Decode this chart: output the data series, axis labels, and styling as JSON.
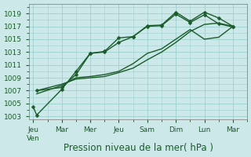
{
  "background_color": "#cde8e8",
  "grid_color": "#9ecfcf",
  "line_color": "#1a5c2a",
  "xlabel": "Pression niveau de la mer( hPa )",
  "ylim": [
    1002.5,
    1020.5
  ],
  "yticks": [
    1003,
    1005,
    1007,
    1009,
    1011,
    1013,
    1015,
    1017,
    1019
  ],
  "xtick_labels": [
    "Jeu\nVen",
    "Mar",
    "Mer",
    "Jeu",
    "Sam",
    "Dim",
    "Lun",
    "Mar"
  ],
  "xtick_positions": [
    0,
    1,
    2,
    3,
    4,
    5,
    6,
    7
  ],
  "xlim": [
    -0.15,
    7.5
  ],
  "line1_x": [
    0,
    0.12,
    1,
    1.5,
    2,
    2.5,
    3,
    3.5,
    4,
    4.5,
    5,
    5.5,
    6,
    6.5,
    7
  ],
  "line1_y": [
    1004.5,
    1003.2,
    1007.2,
    1010.0,
    1012.8,
    1013.0,
    1014.5,
    1015.4,
    1017.1,
    1017.2,
    1019.2,
    1017.8,
    1019.2,
    1018.3,
    1017.0
  ],
  "line2_x": [
    0.12,
    1,
    1.5,
    2,
    2.5,
    3,
    3.5,
    4,
    4.5,
    5,
    5.5,
    6,
    6.5,
    7
  ],
  "line2_y": [
    1007.0,
    1007.5,
    1009.5,
    1012.8,
    1013.1,
    1015.2,
    1015.4,
    1017.0,
    1017.1,
    1018.9,
    1017.6,
    1018.8,
    1017.4,
    1016.9
  ],
  "line3_x": [
    0.12,
    1,
    1.5,
    2,
    2.5,
    3,
    3.5,
    4,
    4.5,
    5,
    5.5,
    6,
    6.5,
    7
  ],
  "line3_y": [
    1006.5,
    1007.8,
    1009.0,
    1009.2,
    1009.5,
    1010.0,
    1011.2,
    1012.8,
    1013.5,
    1015.0,
    1016.5,
    1015.0,
    1015.3,
    1017.0
  ],
  "line4_x": [
    0.12,
    1,
    1.5,
    2,
    2.5,
    3,
    3.5,
    4,
    4.5,
    5,
    5.5,
    6,
    6.5,
    7
  ],
  "line4_y": [
    1007.0,
    1008.0,
    1008.8,
    1009.0,
    1009.2,
    1009.8,
    1010.5,
    1011.8,
    1013.0,
    1014.5,
    1016.2,
    1017.3,
    1017.5,
    1017.0
  ],
  "marker": "D",
  "marker_size": 2.5,
  "line_width": 1.0,
  "xlabel_fontsize": 8.5,
  "tick_fontsize": 6.5
}
